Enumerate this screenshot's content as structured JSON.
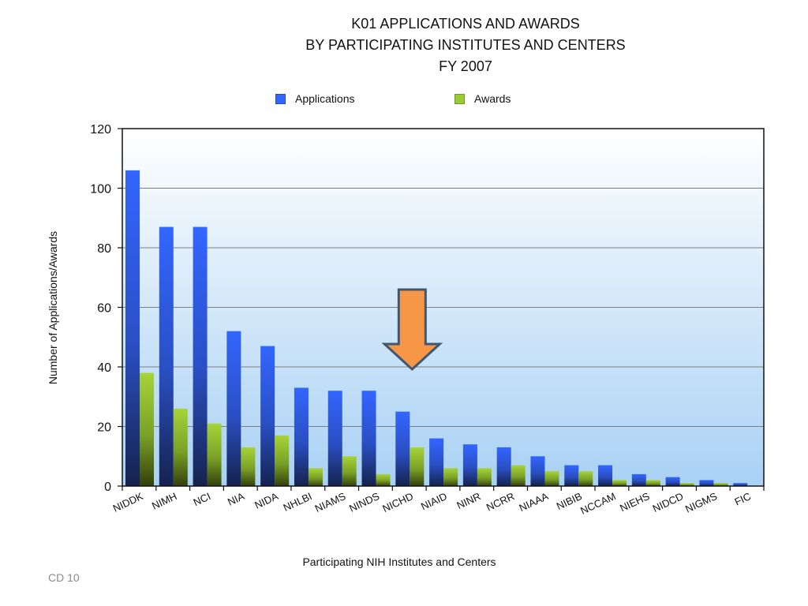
{
  "chart_data": {
    "type": "bar",
    "title": [
      "K01 APPLICATIONS AND AWARDS",
      "BY PARTICIPATING INSTITUTES AND CENTERS",
      "FY 2007"
    ],
    "xlabel": "Participating NIH Institutes and Centers",
    "ylabel": "Number of Applications/Awards",
    "ylim": [
      0,
      120
    ],
    "yticks": [
      0,
      20,
      40,
      60,
      80,
      100,
      120
    ],
    "grid": true,
    "legend_position": "top",
    "categories": [
      "NIDDK",
      "NIMH",
      "NCI",
      "NIA",
      "NIDA",
      "NHLBI",
      "NIAMS",
      "NINDS",
      "NICHD",
      "NIAID",
      "NINR",
      "NCRR",
      "NIAAA",
      "NIBIB",
      "NCCAM",
      "NIEHS",
      "NIDCD",
      "NIGMS",
      "FIC"
    ],
    "series": [
      {
        "name": "Applications",
        "color": "#3366ff",
        "values": [
          106,
          87,
          87,
          52,
          47,
          33,
          32,
          32,
          25,
          16,
          14,
          13,
          10,
          7,
          7,
          4,
          3,
          2,
          1
        ]
      },
      {
        "name": "Awards",
        "color": "#99cc33",
        "values": [
          38,
          26,
          21,
          13,
          17,
          6,
          10,
          4,
          13,
          6,
          6,
          7,
          5,
          5,
          2,
          2,
          1,
          1,
          0
        ]
      }
    ],
    "annotation": {
      "type": "down-arrow",
      "target_category": "NICHD",
      "fill": "#f79646",
      "stroke": "#3f5872"
    }
  },
  "slide_number": "CD 10",
  "colors": {
    "applications": "#3366ff",
    "awards": "#99cc33",
    "plot_bg_top": "#ffffff",
    "plot_bg_bottom": "#a9d1f4",
    "gridline": "#7f7f7f"
  }
}
